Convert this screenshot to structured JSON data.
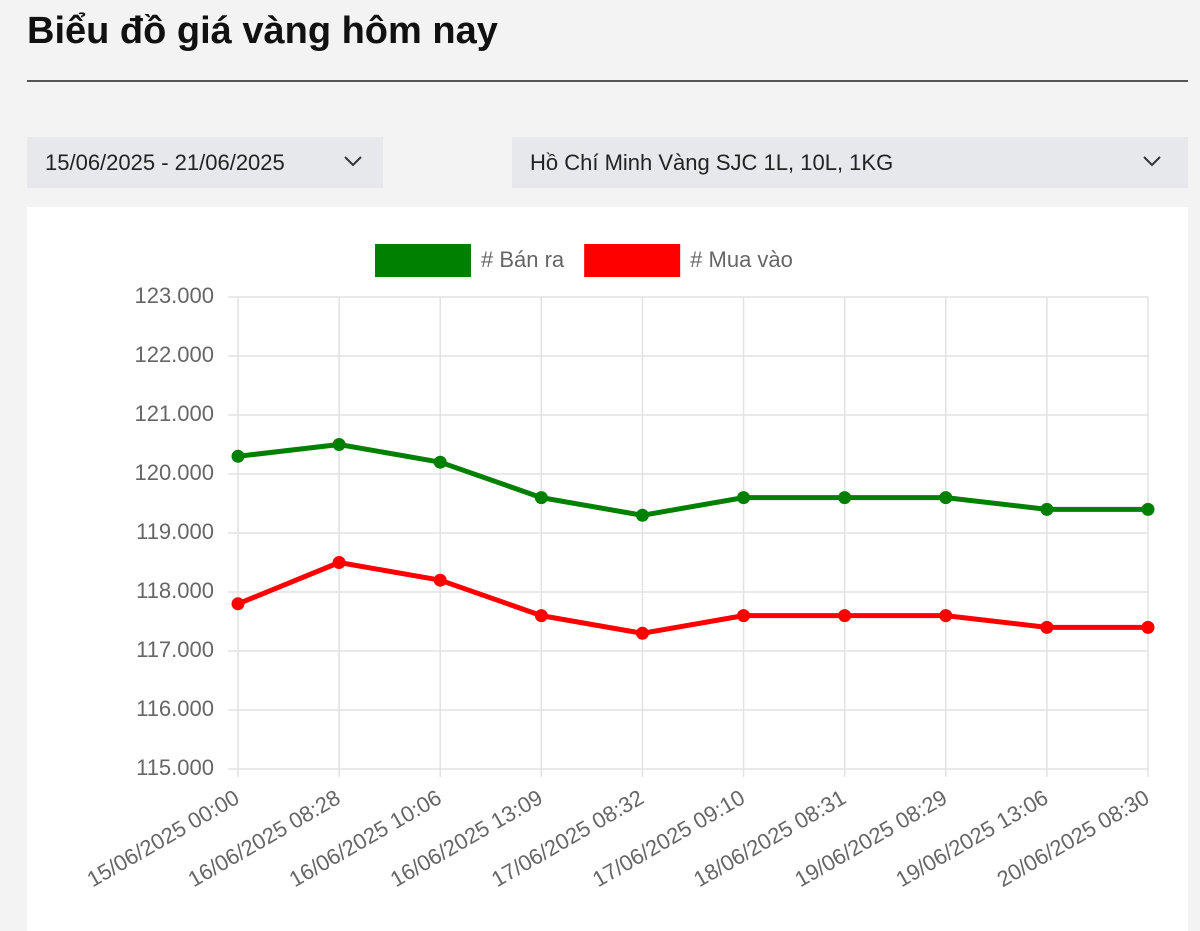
{
  "header": {
    "title": "Biểu đồ giá vàng hôm nay"
  },
  "filters": {
    "date_range": "15/06/2025 - 21/06/2025",
    "product": "Hồ Chí Minh Vàng SJC 1L, 10L, 1KG"
  },
  "chart_data": {
    "type": "line",
    "categories": [
      "15/06/2025 00:00",
      "16/06/2025 08:28",
      "16/06/2025 10:06",
      "16/06/2025 13:09",
      "17/06/2025 08:32",
      "17/06/2025 09:10",
      "18/06/2025 08:31",
      "19/06/2025 08:29",
      "19/06/2025 13:06",
      "20/06/2025 08:30"
    ],
    "series": [
      {
        "name": "# Bán ra",
        "color": "#008000",
        "values": [
          120300,
          120500,
          120200,
          119600,
          119300,
          119600,
          119600,
          119600,
          119400,
          119400
        ]
      },
      {
        "name": "# Mua vào",
        "color": "#ff0000",
        "values": [
          117800,
          118500,
          118200,
          117600,
          117300,
          117600,
          117600,
          117600,
          117400,
          117400
        ]
      }
    ],
    "ylim": [
      115000,
      123000
    ],
    "yticks": [
      {
        "value": 115000,
        "label": "115.000"
      },
      {
        "value": 116000,
        "label": "116.000"
      },
      {
        "value": 117000,
        "label": "117.000"
      },
      {
        "value": 118000,
        "label": "118.000"
      },
      {
        "value": 119000,
        "label": "119.000"
      },
      {
        "value": 120000,
        "label": "120.000"
      },
      {
        "value": 121000,
        "label": "121.000"
      },
      {
        "value": 122000,
        "label": "122.000"
      },
      {
        "value": 123000,
        "label": "123.000"
      }
    ],
    "grid": true,
    "legend": "top"
  }
}
